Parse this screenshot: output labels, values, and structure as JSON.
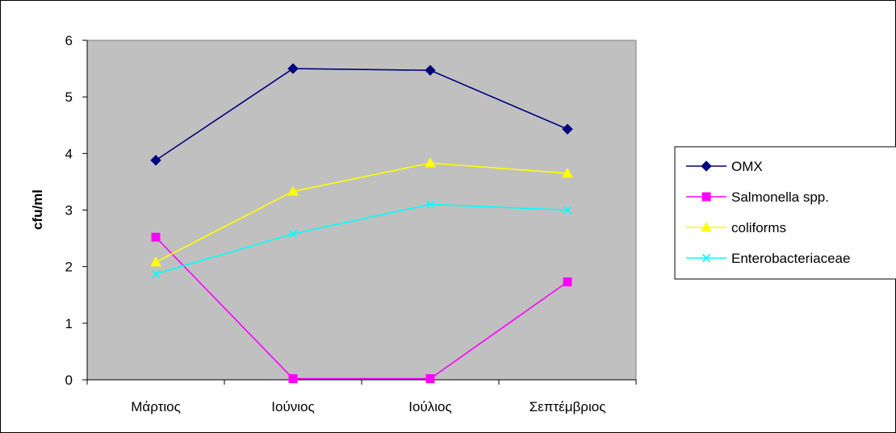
{
  "chart_data": {
    "type": "line",
    "title": "",
    "xlabel": "",
    "ylabel": "cfu/ml",
    "categories": [
      "Μάρτιος",
      "Ιούνιος",
      "Ιούλιος",
      "Σεπτέμβριος"
    ],
    "ylim": [
      0,
      6
    ],
    "yticks": [
      0,
      1,
      2,
      3,
      4,
      5,
      6
    ],
    "grid": false,
    "plot_background": "#c0c0c0",
    "legend_position": "right",
    "series": [
      {
        "name": "OMX",
        "values": [
          3.88,
          5.5,
          5.47,
          4.43
        ],
        "color": "#000080",
        "marker": "diamond"
      },
      {
        "name": "Salmonella spp.",
        "values": [
          2.52,
          0.02,
          0.02,
          1.73
        ],
        "color": "#ff00ff",
        "marker": "square"
      },
      {
        "name": "coliforms",
        "values": [
          2.08,
          3.33,
          3.83,
          3.65
        ],
        "color": "#ffff00",
        "marker": "triangle"
      },
      {
        "name": "Enterobacteriaceae",
        "values": [
          1.87,
          2.58,
          3.1,
          3.0
        ],
        "color": "#00ffff",
        "marker": "x"
      }
    ]
  }
}
